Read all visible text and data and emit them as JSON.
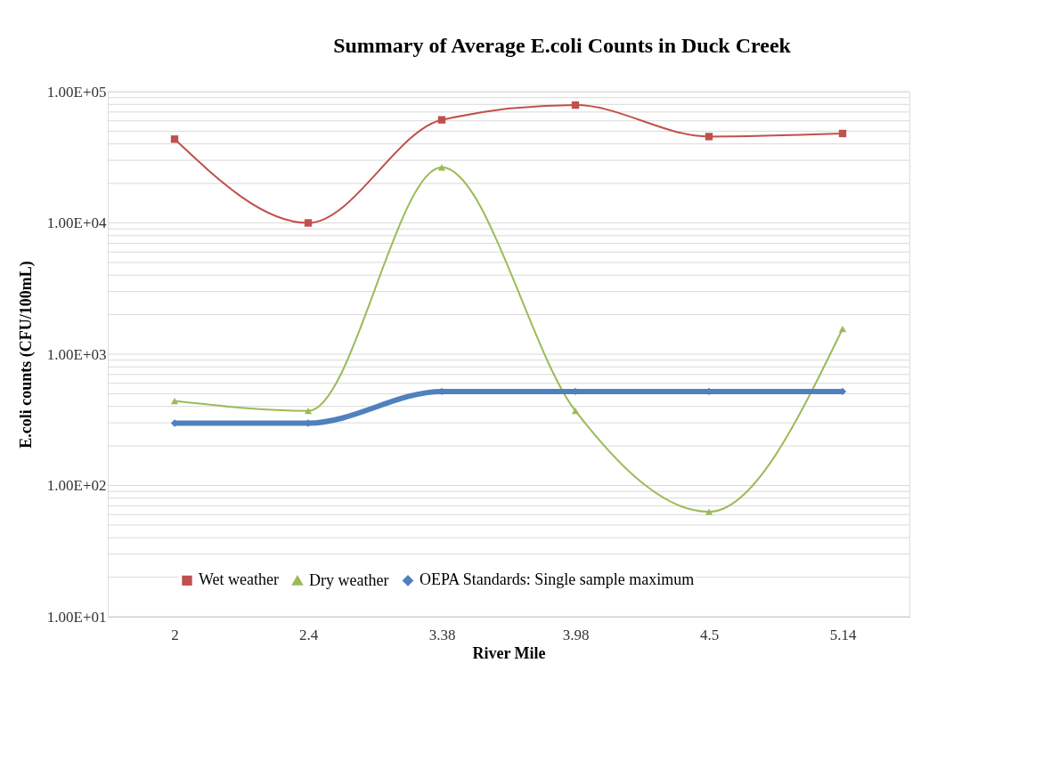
{
  "chart_data": {
    "type": "line",
    "title": "Summary of Average E.coli Counts in Duck Creek",
    "xlabel": "River Mile",
    "ylabel": "E.coli counts (CFU/100mL)",
    "categories": [
      "2",
      "2.4",
      "3.38",
      "3.98",
      "4.5",
      "5.14"
    ],
    "series": [
      {
        "name": "Wet weather",
        "color": "#c0504d",
        "marker": "square",
        "values": [
          43500,
          10000,
          61000,
          79000,
          45500,
          48000
        ]
      },
      {
        "name": "Dry weather",
        "color": "#9bbb59",
        "marker": "triangle",
        "values": [
          440,
          370,
          26500,
          370,
          63,
          1560
        ]
      },
      {
        "name": "OEPA Standards: Single sample maximum",
        "color": "#4f81bd",
        "marker": "diamond",
        "values": [
          298,
          298,
          520,
          520,
          520,
          520
        ]
      }
    ],
    "log": "y",
    "ylim": [
      10,
      100000
    ],
    "yticks": [
      {
        "value": 10,
        "label": "1.00E+01"
      },
      {
        "value": 100,
        "label": "1.00E+02"
      },
      {
        "value": 1000,
        "label": "1.00E+03"
      },
      {
        "value": 10000,
        "label": "1.00E+04"
      },
      {
        "value": 100000,
        "label": "1.00E+05"
      }
    ],
    "grid": "y",
    "legend": "bottom"
  }
}
